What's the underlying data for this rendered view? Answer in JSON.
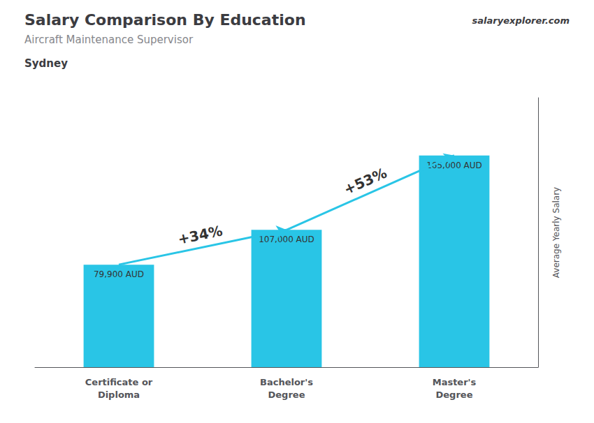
{
  "chart_data": {
    "type": "bar",
    "title": "Salary Comparison By Education",
    "subtitle": "Aircraft Maintenance Supervisor",
    "city": "Sydney",
    "watermark": "salaryexplorer.com",
    "ylabel": "Average Yearly Salary",
    "categories": [
      "Certificate or\nDiploma",
      "Bachelor's\nDegree",
      "Master's\nDegree"
    ],
    "values": [
      79900,
      107000,
      165000
    ],
    "value_labels": [
      "79,900 AUD",
      "107,000 AUD",
      "165,000 AUD"
    ],
    "annotations": [
      "+34%",
      "+53%"
    ],
    "color": "#29c5e6",
    "ylim": [
      0,
      210000
    ],
    "data_labels": true,
    "tick_labels": "x",
    "grid": false
  }
}
